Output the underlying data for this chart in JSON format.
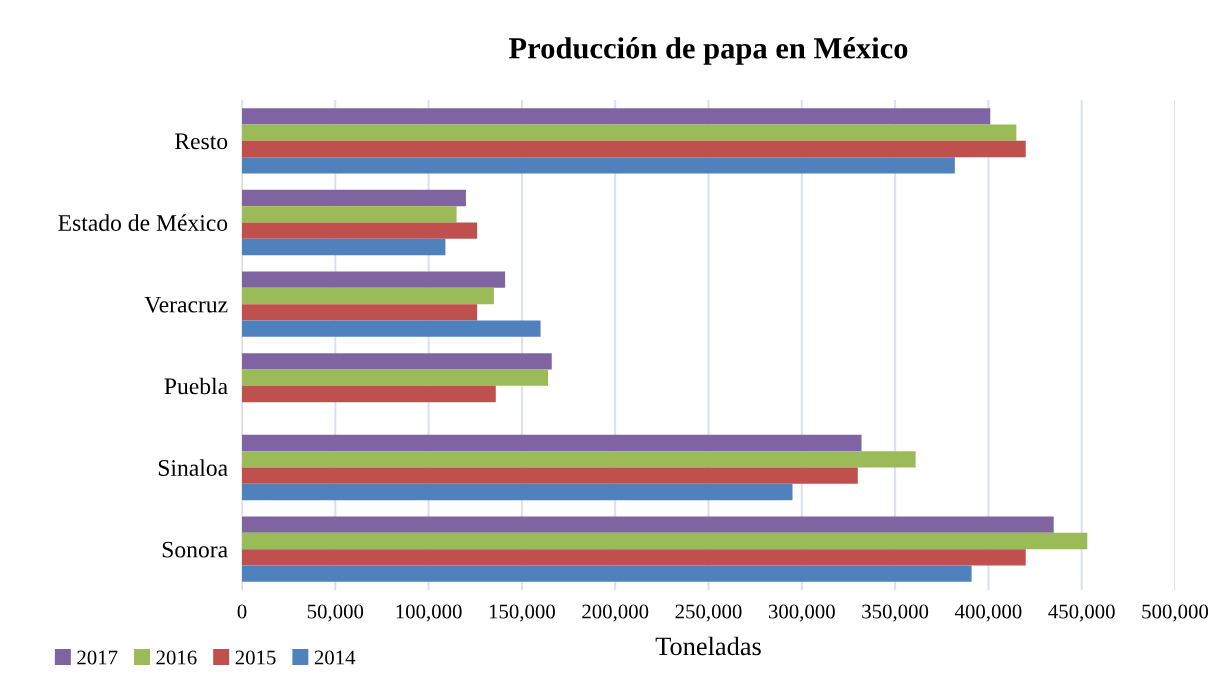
{
  "chart_data": {
    "type": "bar",
    "orientation": "horizontal",
    "title": "Producción de papa en México",
    "xlabel": "Toneladas",
    "categories": [
      "Resto",
      "Estado de México",
      "Veracruz",
      "Puebla",
      "Sinaloa",
      "Sonora"
    ],
    "series": [
      {
        "name": "2017",
        "color": "#8064a2",
        "values": [
          401000,
          120000,
          141000,
          166000,
          332000,
          435000
        ]
      },
      {
        "name": "2016",
        "color": "#9bbb59",
        "values": [
          415000,
          115000,
          135000,
          164000,
          361000,
          453000
        ]
      },
      {
        "name": "2015",
        "color": "#c0504d",
        "values": [
          420000,
          126000,
          126000,
          136000,
          330000,
          420000
        ]
      },
      {
        "name": "2014",
        "color": "#4f81bd",
        "values": [
          382000,
          109000,
          160000,
          null,
          295000,
          391000
        ]
      }
    ],
    "xlim": [
      0,
      500000
    ],
    "xticks": [
      0,
      {
        "value": 50000,
        "label": "50,000"
      },
      {
        "value": 100000,
        "label": "100,000"
      },
      {
        "value": 150000,
        "label": "150,000"
      },
      {
        "value": 200000,
        "label": "200,000"
      },
      {
        "value": 250000,
        "label": "250,000"
      },
      {
        "value": 300000,
        "label": "300,000"
      },
      {
        "value": 350000,
        "label": "350,000"
      },
      {
        "value": 400000,
        "label": "400,000"
      },
      {
        "value": 450000,
        "label": "450,000"
      },
      {
        "value": 500000,
        "label": "500,000"
      }
    ],
    "grid": "x",
    "legend": "bottom left"
  }
}
